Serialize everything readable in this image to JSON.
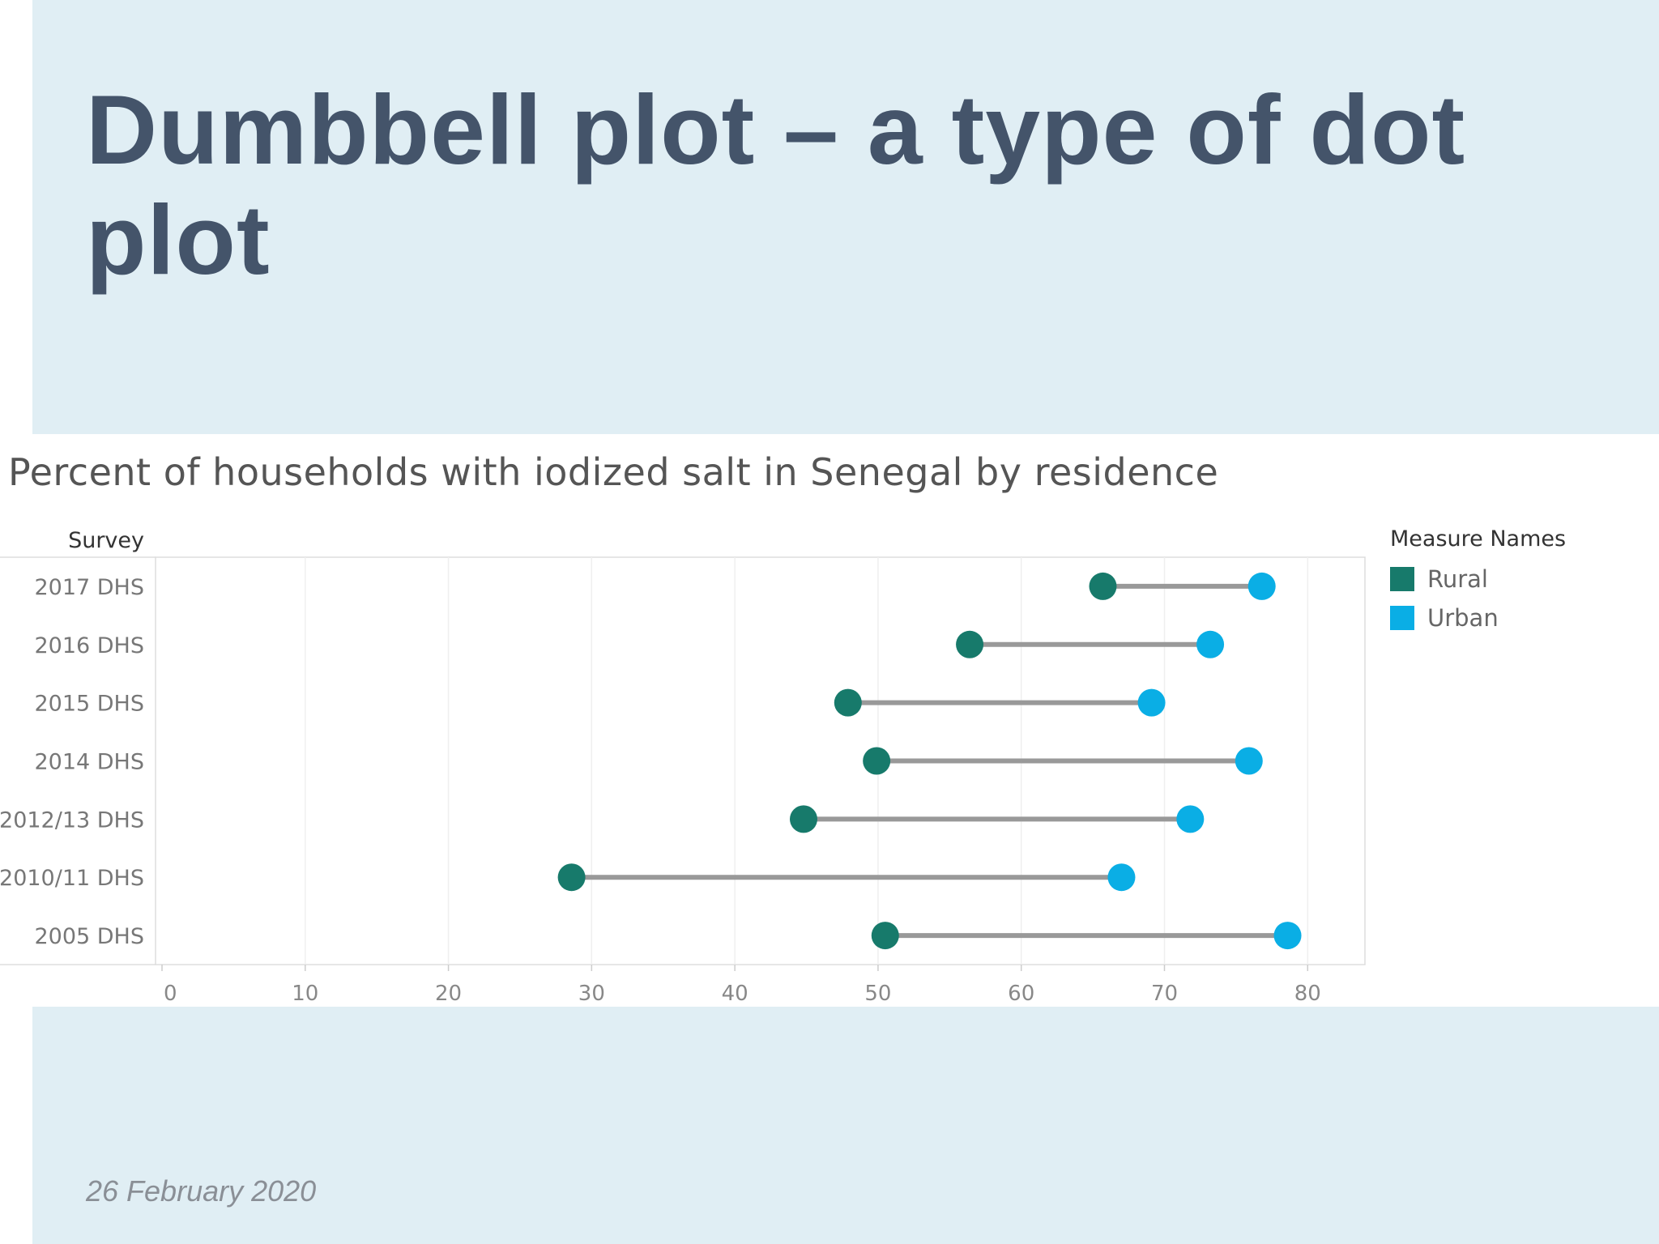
{
  "slide": {
    "title": "Dumbbell plot – a type of dot plot",
    "date": "26 February 2020"
  },
  "chart_data": {
    "type": "dumbbell",
    "title": "Percent of households with iodized salt in Senegal by residence",
    "ylabel": "Survey",
    "xlabel": "",
    "xlim": [
      0,
      84
    ],
    "xticks": [
      0,
      10,
      20,
      30,
      40,
      50,
      60,
      70,
      80
    ],
    "grid": true,
    "categories": [
      "2017 DHS",
      "2016 DHS",
      "2015 DHS",
      "2014 DHS",
      "2012/13 DHS",
      "2010/11 DHS",
      "2005 DHS"
    ],
    "series": [
      {
        "name": "Rural",
        "color": "#177a6b",
        "values": [
          65.7,
          56.4,
          47.9,
          49.9,
          44.8,
          28.6,
          50.5
        ]
      },
      {
        "name": "Urban",
        "color": "#0aaee5",
        "values": [
          76.8,
          73.2,
          69.1,
          75.9,
          71.8,
          67.0,
          78.6
        ]
      }
    ],
    "connector_color": "#999999",
    "legend": {
      "title": "Measure Names",
      "position": "right"
    }
  }
}
